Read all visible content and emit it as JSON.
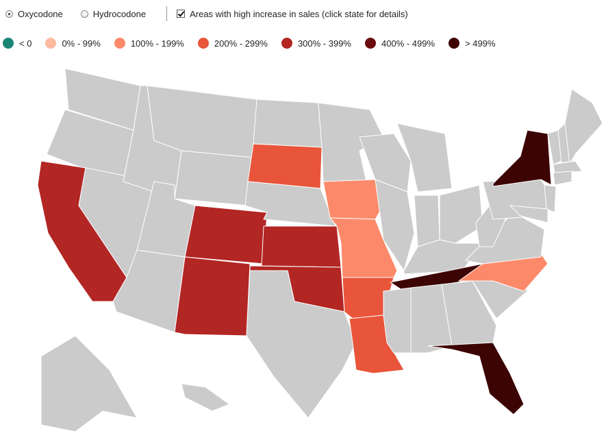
{
  "controls": {
    "radio_oxy": {
      "label": "Oxycodone",
      "selected": true
    },
    "radio_hydro": {
      "label": "Hydrocodone",
      "selected": false
    },
    "checkbox_high": {
      "label": "Areas with high increase in sales (click state for details)",
      "checked": true
    }
  },
  "legend": [
    {
      "label": "< 0",
      "color": "#1a8575"
    },
    {
      "label": "0% - 99%",
      "color": "#fcbba1"
    },
    {
      "label": "100% - 199%",
      "color": "#fc8a6a"
    },
    {
      "label": "200% - 299%",
      "color": "#e8553a"
    },
    {
      "label": "300% - 399%",
      "color": "#b22624"
    },
    {
      "label": "400% - 499%",
      "color": "#6b0b0b"
    },
    {
      "label": "> 499%",
      "color": "#3d0404"
    }
  ],
  "default_color": "#cbcbcb",
  "highlighted_states": {
    "CA": "300% - 399%",
    "CO": "300% - 399%",
    "NM": "300% - 399%",
    "KS": "300% - 399%",
    "OK": "300% - 399%",
    "SD": "200% - 299%",
    "AR": "200% - 299%",
    "LA": "200% - 299%",
    "IA": "100% - 199%",
    "MO": "100% - 199%",
    "NC": "100% - 199%",
    "TN": "> 499%",
    "FL": "> 499%",
    "NY": "> 499%"
  }
}
